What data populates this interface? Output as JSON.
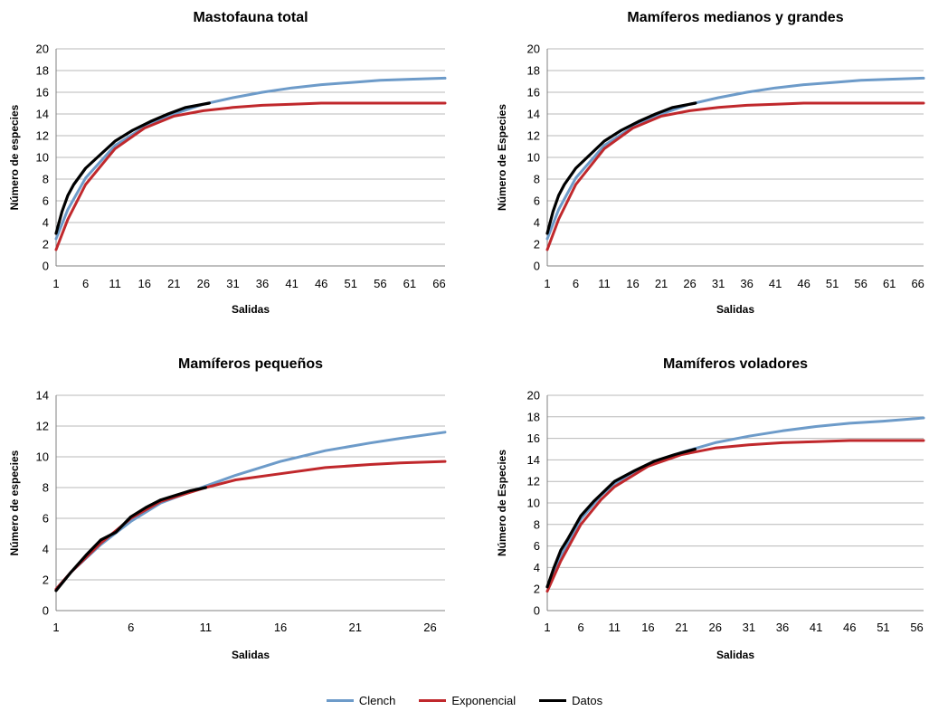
{
  "colors": {
    "clench": "#6d9bc9",
    "exponencial": "#c0282c",
    "datos": "#000000",
    "grid": "#b8b8b8"
  },
  "legend": [
    {
      "key": "clench",
      "label": "Clench"
    },
    {
      "key": "exponencial",
      "label": "Exponencial"
    },
    {
      "key": "datos",
      "label": "Datos"
    }
  ],
  "chart_data": [
    {
      "type": "line",
      "title": "Mastofauna total",
      "xlabel": "Salidas",
      "ylabel": "Número de especies",
      "ylim": [
        0,
        20
      ],
      "yticks": [
        0,
        2,
        4,
        6,
        8,
        10,
        12,
        14,
        16,
        18,
        20
      ],
      "xlim": [
        1,
        67
      ],
      "xticks": [
        1,
        6,
        11,
        16,
        21,
        26,
        31,
        36,
        41,
        46,
        51,
        56,
        61,
        66
      ],
      "grid": true,
      "series": [
        {
          "name": "Clench",
          "key": "clench",
          "x": [
            1,
            3,
            6,
            11,
            16,
            21,
            26,
            31,
            36,
            41,
            46,
            51,
            56,
            61,
            67
          ],
          "y": [
            2.5,
            5.2,
            8.1,
            11.1,
            12.8,
            14.0,
            14.9,
            15.5,
            16.0,
            16.4,
            16.7,
            16.9,
            17.1,
            17.2,
            17.3
          ]
        },
        {
          "name": "Exponencial",
          "key": "exponencial",
          "x": [
            1,
            3,
            6,
            11,
            16,
            21,
            26,
            31,
            36,
            41,
            46,
            51,
            56,
            61,
            67
          ],
          "y": [
            1.5,
            4.3,
            7.5,
            10.8,
            12.7,
            13.8,
            14.3,
            14.6,
            14.8,
            14.9,
            15.0,
            15.0,
            15.0,
            15.0,
            15.0
          ]
        },
        {
          "name": "Datos",
          "key": "datos",
          "x": [
            1,
            2,
            3,
            4,
            6,
            8,
            11,
            14,
            17,
            20,
            23,
            27
          ],
          "y": [
            3.0,
            5.0,
            6.5,
            7.5,
            9.0,
            10.0,
            11.5,
            12.5,
            13.3,
            14.0,
            14.6,
            15.0
          ]
        }
      ]
    },
    {
      "type": "line",
      "title": "Mamíferos medianos y grandes",
      "xlabel": "Salidas",
      "ylabel": "Número de Especies",
      "ylim": [
        0,
        20
      ],
      "yticks": [
        0,
        2,
        4,
        6,
        8,
        10,
        12,
        14,
        16,
        18,
        20
      ],
      "xlim": [
        1,
        67
      ],
      "xticks": [
        1,
        6,
        11,
        16,
        21,
        26,
        31,
        36,
        41,
        46,
        51,
        56,
        61,
        66
      ],
      "grid": true,
      "series": [
        {
          "name": "Clench",
          "key": "clench",
          "x": [
            1,
            3,
            6,
            11,
            16,
            21,
            26,
            31,
            36,
            41,
            46,
            51,
            56,
            61,
            67
          ],
          "y": [
            2.5,
            5.2,
            8.1,
            11.1,
            12.8,
            14.0,
            14.9,
            15.5,
            16.0,
            16.4,
            16.7,
            16.9,
            17.1,
            17.2,
            17.3
          ]
        },
        {
          "name": "Exponencial",
          "key": "exponencial",
          "x": [
            1,
            3,
            6,
            11,
            16,
            21,
            26,
            31,
            36,
            41,
            46,
            51,
            56,
            61,
            67
          ],
          "y": [
            1.5,
            4.3,
            7.5,
            10.8,
            12.7,
            13.8,
            14.3,
            14.6,
            14.8,
            14.9,
            15.0,
            15.0,
            15.0,
            15.0,
            15.0
          ]
        },
        {
          "name": "Datos",
          "key": "datos",
          "x": [
            1,
            2,
            3,
            4,
            6,
            8,
            11,
            14,
            17,
            20,
            23,
            27
          ],
          "y": [
            3.0,
            5.0,
            6.5,
            7.5,
            9.0,
            10.0,
            11.5,
            12.5,
            13.3,
            14.0,
            14.6,
            15.0
          ]
        }
      ]
    },
    {
      "type": "line",
      "title": "Mamíferos pequeños",
      "xlabel": "Salidas",
      "ylabel": "Número de especies",
      "ylim": [
        0,
        14
      ],
      "yticks": [
        0,
        2,
        4,
        6,
        8,
        10,
        12,
        14
      ],
      "xlim": [
        1,
        27
      ],
      "xticks": [
        1,
        6,
        11,
        16,
        21,
        26
      ],
      "grid": true,
      "series": [
        {
          "name": "Clench",
          "key": "clench",
          "x": [
            1,
            2,
            4,
            6,
            8,
            11,
            13,
            16,
            19,
            22,
            24,
            27
          ],
          "y": [
            1.4,
            2.5,
            4.3,
            5.8,
            7.0,
            8.1,
            8.8,
            9.7,
            10.4,
            10.9,
            11.2,
            11.6
          ]
        },
        {
          "name": "Exponencial",
          "key": "exponencial",
          "x": [
            1,
            2,
            4,
            6,
            8,
            11,
            13,
            16,
            19,
            22,
            24,
            27
          ],
          "y": [
            1.4,
            2.5,
            4.4,
            6.0,
            7.1,
            8.0,
            8.5,
            8.9,
            9.3,
            9.5,
            9.6,
            9.7
          ]
        },
        {
          "name": "Datos",
          "key": "datos",
          "x": [
            1,
            2,
            3,
            4,
            5,
            6,
            7,
            8,
            9,
            10,
            11
          ],
          "y": [
            1.3,
            2.5,
            3.6,
            4.6,
            5.1,
            6.1,
            6.7,
            7.2,
            7.5,
            7.8,
            8.0
          ]
        }
      ]
    },
    {
      "type": "line",
      "title": "Mamíferos voladores",
      "xlabel": "Salidas",
      "ylabel": "Número de Especies",
      "ylim": [
        0,
        20
      ],
      "yticks": [
        0,
        2,
        4,
        6,
        8,
        10,
        12,
        14,
        16,
        18,
        20
      ],
      "xlim": [
        1,
        57
      ],
      "xticks": [
        1,
        6,
        11,
        16,
        21,
        26,
        31,
        36,
        41,
        46,
        51,
        56
      ],
      "grid": true,
      "series": [
        {
          "name": "Clench",
          "key": "clench",
          "x": [
            1,
            3,
            6,
            9,
            11,
            16,
            21,
            26,
            31,
            36,
            41,
            46,
            51,
            57
          ],
          "y": [
            2.2,
            5.0,
            8.5,
            10.7,
            11.8,
            13.6,
            14.7,
            15.6,
            16.2,
            16.7,
            17.1,
            17.4,
            17.6,
            17.9
          ]
        },
        {
          "name": "Exponencial",
          "key": "exponencial",
          "x": [
            1,
            3,
            6,
            9,
            11,
            16,
            21,
            26,
            31,
            36,
            41,
            46,
            51,
            57
          ],
          "y": [
            1.8,
            4.6,
            8.0,
            10.3,
            11.5,
            13.4,
            14.5,
            15.1,
            15.4,
            15.6,
            15.7,
            15.8,
            15.8,
            15.8
          ]
        },
        {
          "name": "Datos",
          "key": "datos",
          "x": [
            1,
            2,
            3,
            4,
            6,
            8,
            11,
            14,
            17,
            20,
            23
          ],
          "y": [
            2.2,
            4.0,
            5.6,
            6.6,
            8.8,
            10.2,
            12.0,
            13.0,
            13.9,
            14.5,
            15.0
          ]
        }
      ]
    }
  ]
}
